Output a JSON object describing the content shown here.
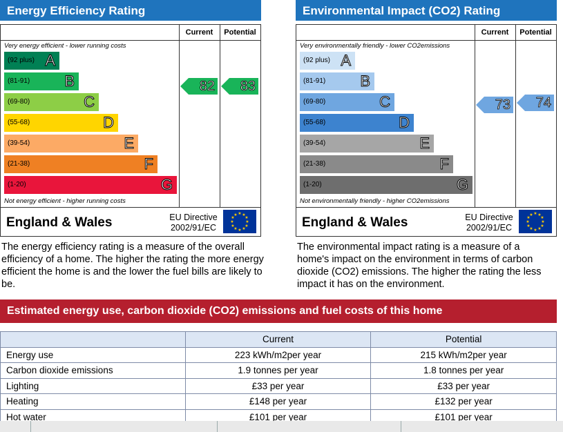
{
  "energy": {
    "title": "Energy Efficiency Rating",
    "col_current": "Current",
    "col_potential": "Potential",
    "top_caption": "Very energy efficient - lower running costs",
    "bottom_caption": "Not energy efficient - higher running costs",
    "bands": [
      {
        "range": "(92 plus)",
        "letter": "A",
        "color": "#008054"
      },
      {
        "range": "(81-91)",
        "letter": "B",
        "color": "#19b459"
      },
      {
        "range": "(69-80)",
        "letter": "C",
        "color": "#8dce46"
      },
      {
        "range": "(55-68)",
        "letter": "D",
        "color": "#ffd500"
      },
      {
        "range": "(39-54)",
        "letter": "E",
        "color": "#fcaa65"
      },
      {
        "range": "(21-38)",
        "letter": "F",
        "color": "#ef8023"
      },
      {
        "range": "(1-20)",
        "letter": "G",
        "color": "#e9153b"
      }
    ],
    "current": "82",
    "potential": "83",
    "arrow_color": "#19b459",
    "region": "England & Wales",
    "directive_line1": "EU Directive",
    "directive_line2": "2002/91/EC",
    "description": "The energy efficiency rating is a measure of the overall efficiency of a home. The higher the rating the more energy efficient the home is and the lower the fuel bills are likely to be."
  },
  "environment": {
    "title": "Environmental Impact (CO2) Rating",
    "col_current": "Current",
    "col_potential": "Potential",
    "top_caption": "Very environmentally friendly - lower CO2emissions",
    "bottom_caption": "Not environmentally friendly - higher CO2emissions",
    "bands": [
      {
        "range": "(92 plus)",
        "letter": "A",
        "color": "#cde2f5"
      },
      {
        "range": "(81-91)",
        "letter": "B",
        "color": "#a5c9ee"
      },
      {
        "range": "(69-80)",
        "letter": "C",
        "color": "#6fa6e0"
      },
      {
        "range": "(55-68)",
        "letter": "D",
        "color": "#3d83cf"
      },
      {
        "range": "(39-54)",
        "letter": "E",
        "color": "#a6a6a6"
      },
      {
        "range": "(21-38)",
        "letter": "F",
        "color": "#8a8a8a"
      },
      {
        "range": "(1-20)",
        "letter": "G",
        "color": "#6e6e6e"
      }
    ],
    "current": "73",
    "potential": "74",
    "arrow_color": "#6fa6e0",
    "region": "England & Wales",
    "directive_line1": "EU Directive",
    "directive_line2": "2002/91/EC",
    "description": "The environmental impact rating is a measure of a home's impact on the environment in terms of carbon dioxide (CO2) emissions. The higher the rating the less impact it has on the environment."
  },
  "estimates": {
    "title": "Estimated energy use, carbon dioxide (CO2) emissions and fuel costs of this home",
    "col_current": "Current",
    "col_potential": "Potential",
    "rows": [
      {
        "label": "Energy use",
        "current": "223 kWh/m2per year",
        "potential": "215 kWh/m2per year"
      },
      {
        "label": "Carbon dioxide emissions",
        "current": "1.9 tonnes per year",
        "potential": "1.8 tonnes per year"
      },
      {
        "label": "Lighting",
        "current": "£33 per year",
        "potential": "£33 per year"
      },
      {
        "label": "Heating",
        "current": "£148 per year",
        "potential": "£132 per year"
      },
      {
        "label": "Hot water",
        "current": "£101 per year",
        "potential": "£101 per year"
      }
    ]
  }
}
